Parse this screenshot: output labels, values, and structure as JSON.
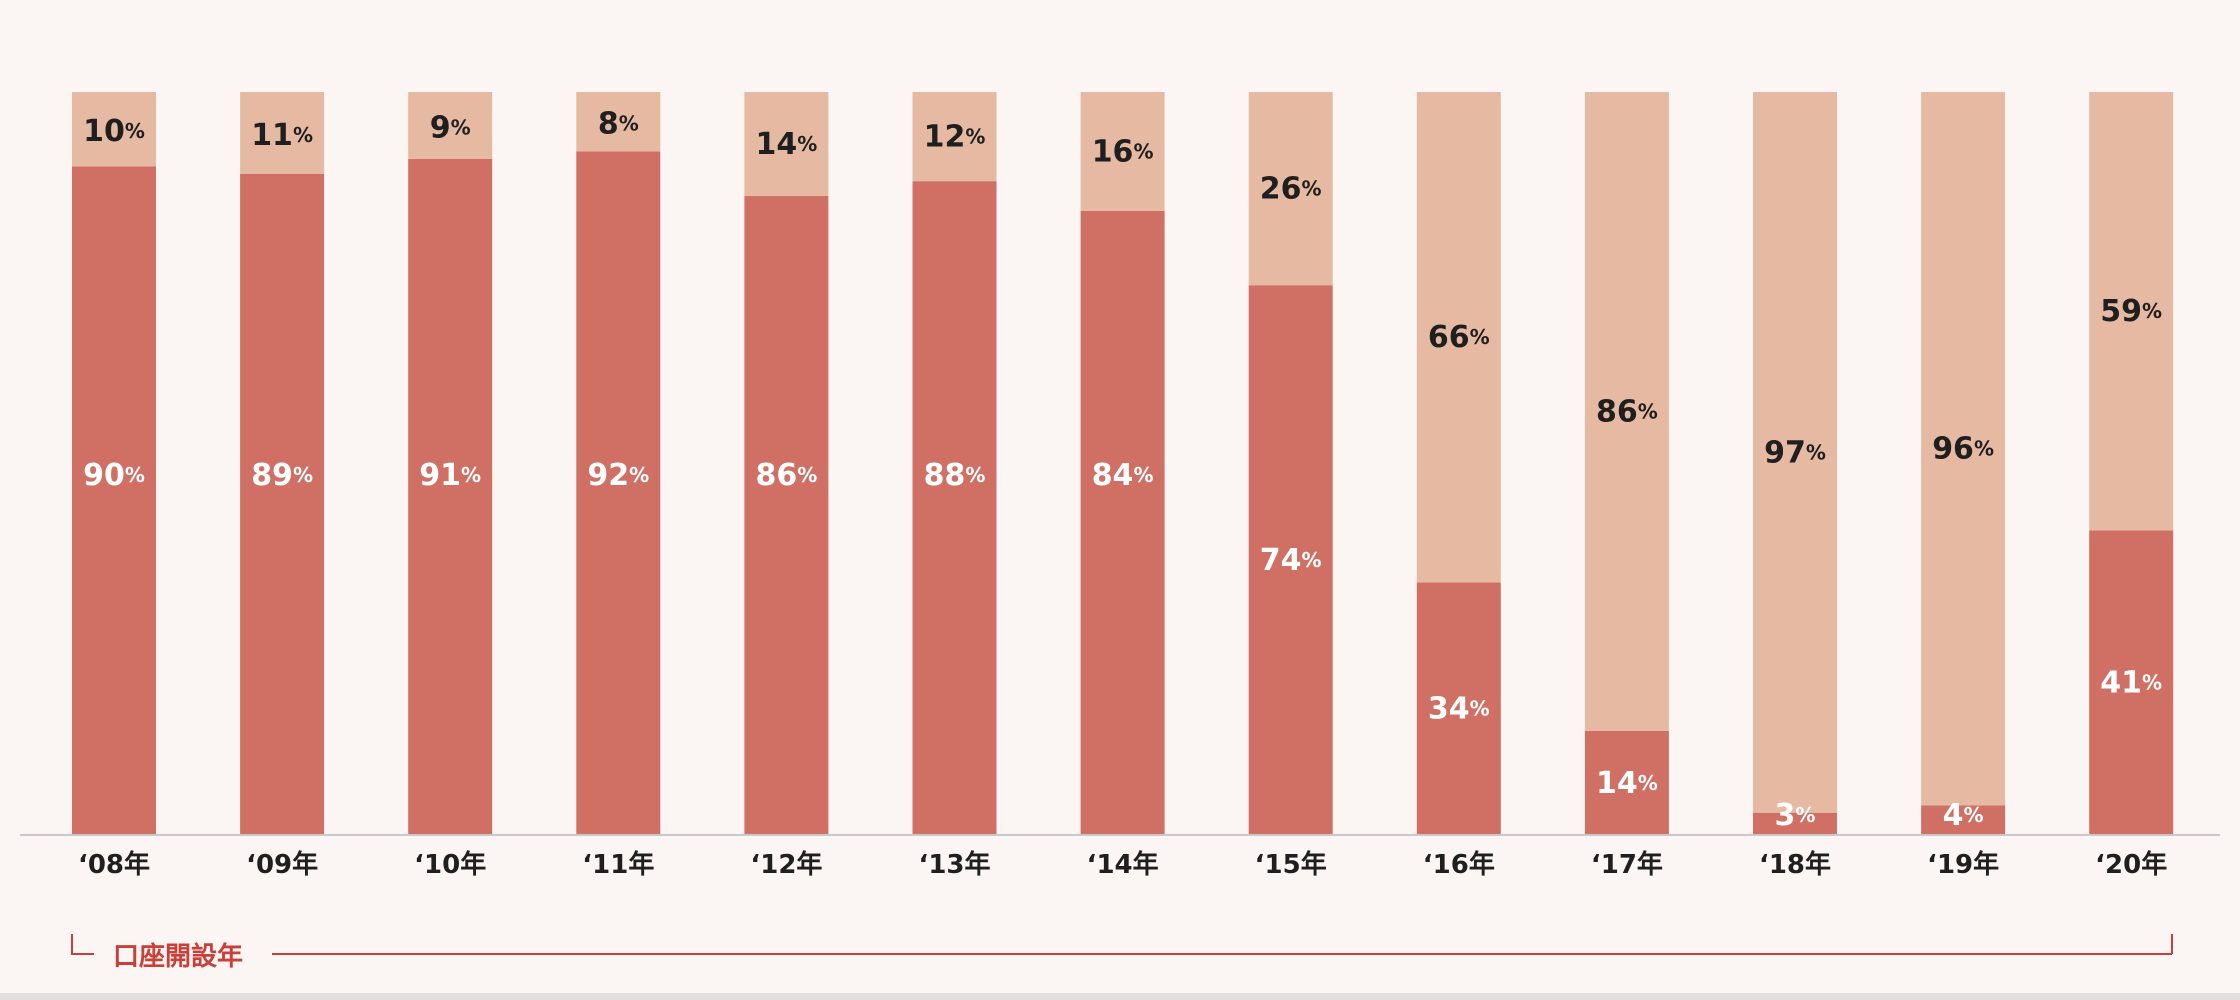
{
  "chart_data": {
    "type": "bar",
    "stacked": true,
    "categories": [
      "‘08年",
      "‘09年",
      "‘10年",
      "‘11年",
      "‘12年",
      "‘13年",
      "‘14年",
      "‘15年",
      "‘16年",
      "‘17年",
      "‘18年",
      "‘19年",
      "‘20年"
    ],
    "series": [
      {
        "color": "#d07065",
        "label_color": "#ffffff",
        "values": [
          90,
          89,
          91,
          92,
          86,
          88,
          84,
          74,
          34,
          14,
          3,
          4,
          41
        ]
      },
      {
        "color": "#e6b9a2",
        "label_color": "#1f1f1f",
        "values": [
          10,
          11,
          9,
          8,
          14,
          12,
          16,
          26,
          66,
          86,
          97,
          96,
          59
        ]
      }
    ],
    "percent_suffix": "%",
    "ylim": [
      0,
      100
    ],
    "grid": false,
    "xlabel": "口座開設年"
  }
}
